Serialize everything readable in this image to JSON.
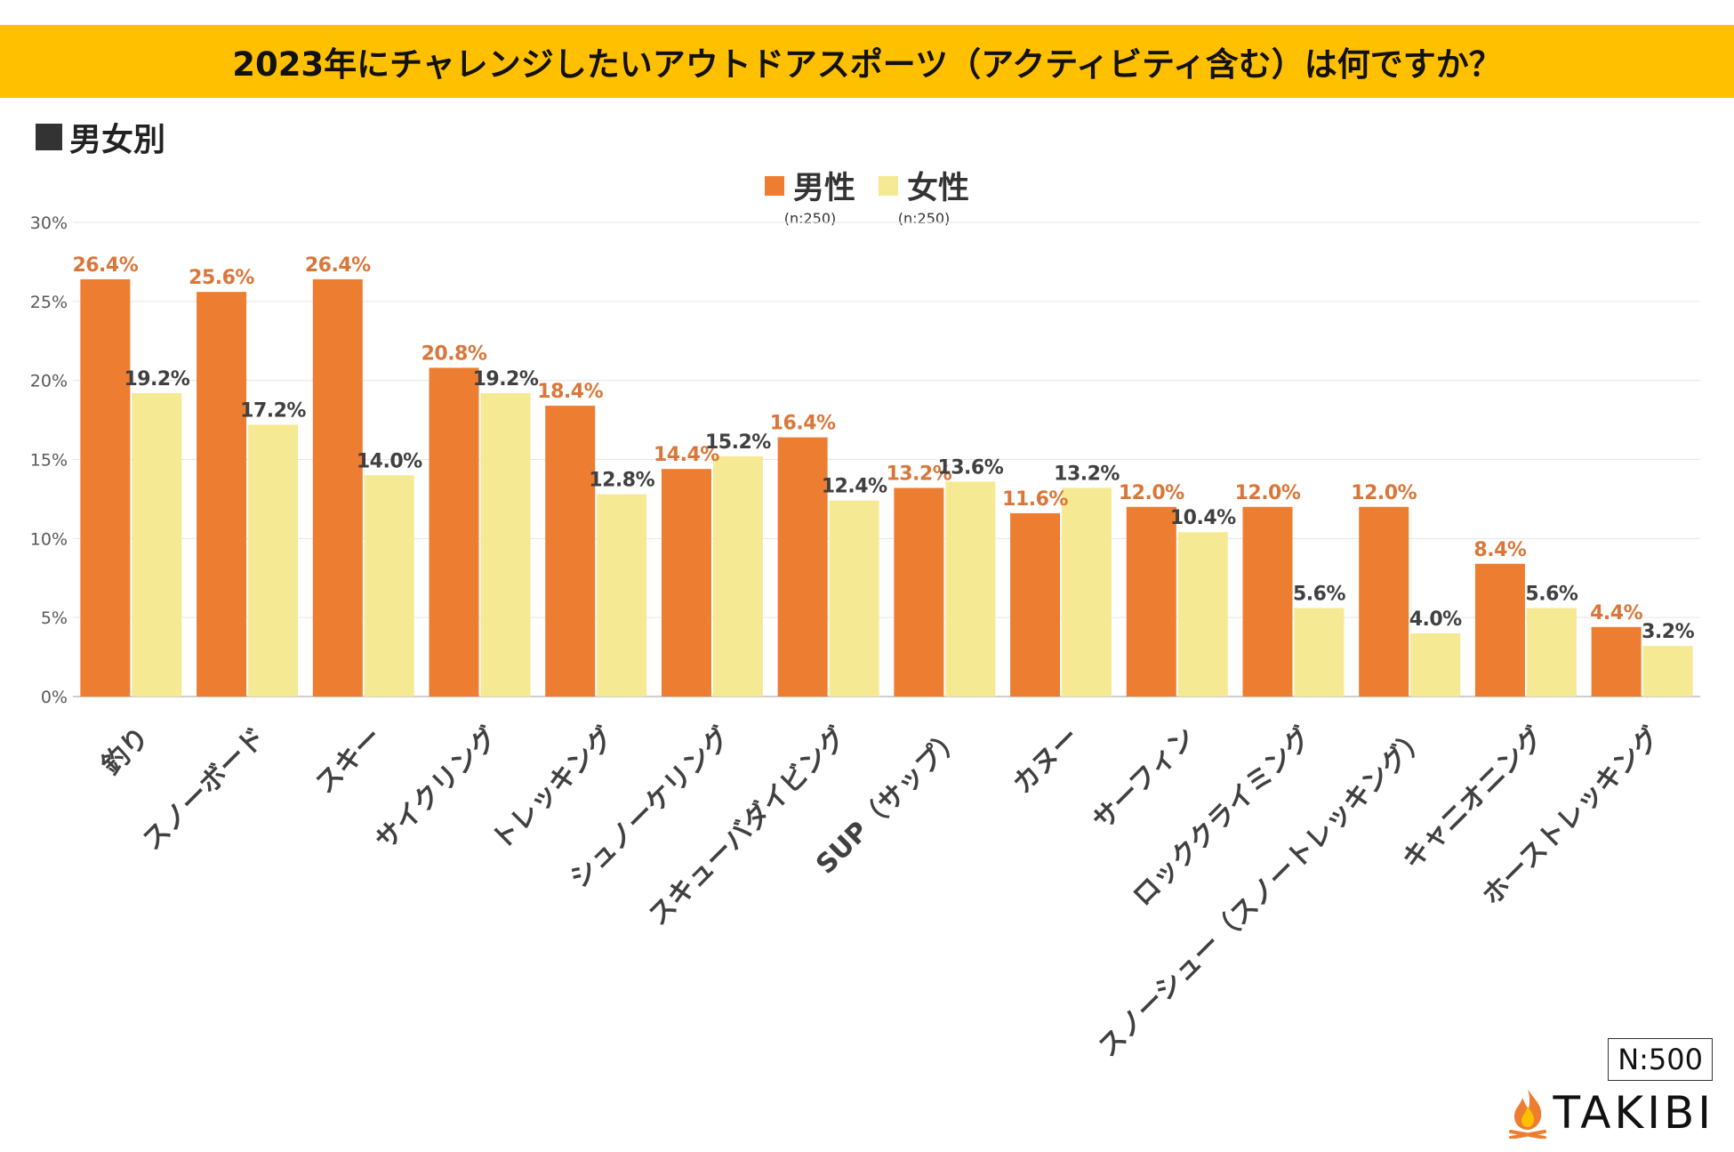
{
  "title": "2023年にチャレンジしたいアウトドアスポーツ（アクティビティ含む）は何ですか？",
  "subtitle": "男女別",
  "colors": {
    "banner": "#FFC000",
    "male": "#ED7D31",
    "female": "#F6E994",
    "male_label": "#D9773A",
    "female_label": "#404040",
    "grid": "#E6E6E6"
  },
  "legend": [
    {
      "label": "男性",
      "n": "(n:250)"
    },
    {
      "label": "女性",
      "n": "(n:250)"
    }
  ],
  "sample_size": "N:500",
  "brand": "TAKIBI",
  "chart_data": {
    "type": "bar",
    "categories": [
      "釣り",
      "スノーボード",
      "スキー",
      "サイクリング",
      "トレッキング",
      "シュノーケリング",
      "スキューバダイビング",
      "SUP（サップ）",
      "カヌー",
      "サーフィン",
      "ロッククライミング",
      "スノーシュー（スノートレッキング）",
      "キャニオニング",
      "ホーストレッキング"
    ],
    "series": [
      {
        "name": "男性",
        "values": [
          26.4,
          25.6,
          26.4,
          20.8,
          18.4,
          14.4,
          16.4,
          13.2,
          11.6,
          12.0,
          12.0,
          12.0,
          8.4,
          4.4
        ]
      },
      {
        "name": "女性",
        "values": [
          19.2,
          17.2,
          14.0,
          19.2,
          12.8,
          15.2,
          12.4,
          13.6,
          13.2,
          10.4,
          5.6,
          4.0,
          5.6,
          3.2
        ]
      }
    ],
    "y_ticks": [
      "0%",
      "5%",
      "10%",
      "15%",
      "20%",
      "25%",
      "30%"
    ],
    "ylim": [
      0,
      30
    ],
    "ylabel": "",
    "xlabel": ""
  }
}
